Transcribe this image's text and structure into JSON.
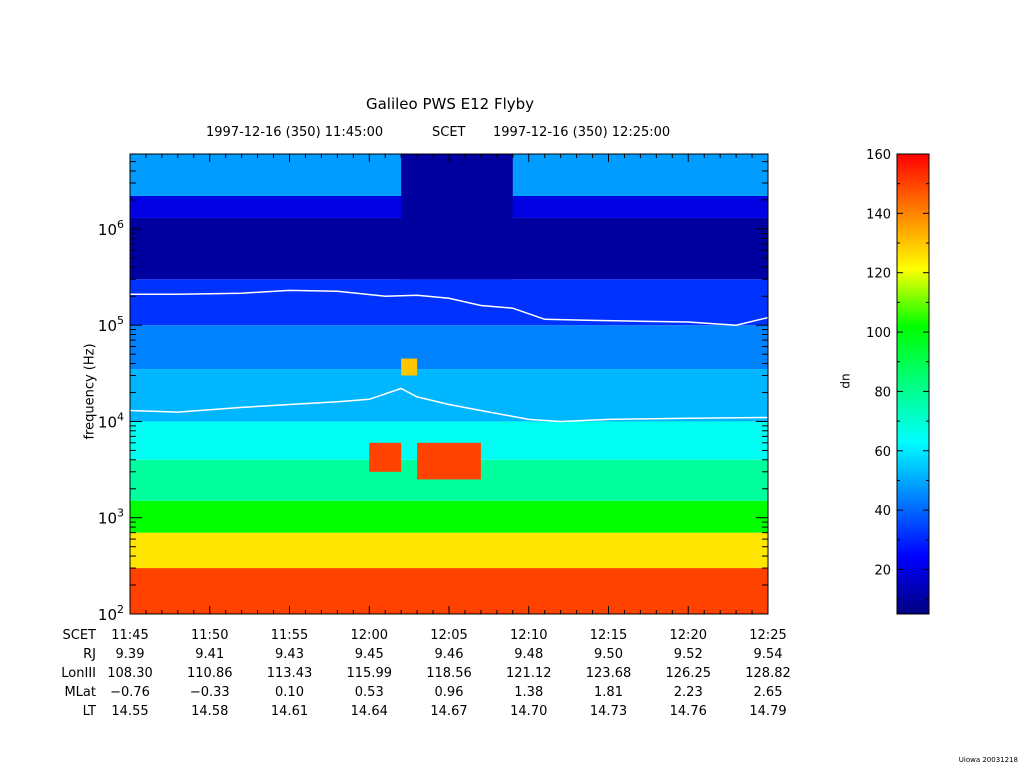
{
  "page": {
    "title": "Galileo PWS E12 Flyby",
    "start_time": "1997-12-16 (350) 11:45:00",
    "time_system": "SCET",
    "end_time": "1997-12-16 (350) 12:25:00",
    "footer": "Uiowa 20031218"
  },
  "ephemeris": {
    "rows": [
      {
        "label": "SCET",
        "values": [
          "11:45",
          "11:50",
          "11:55",
          "12:00",
          "12:05",
          "12:10",
          "12:15",
          "12:20",
          "12:25"
        ]
      },
      {
        "label": "RJ",
        "values": [
          "9.39",
          "9.41",
          "9.43",
          "9.45",
          "9.46",
          "9.48",
          "9.50",
          "9.52",
          "9.54"
        ]
      },
      {
        "label": "LonIII",
        "values": [
          "108.30",
          "110.86",
          "113.43",
          "115.99",
          "118.56",
          "121.12",
          "123.68",
          "126.25",
          "128.82"
        ]
      },
      {
        "label": "MLat",
        "values": [
          "−0.76",
          "−0.33",
          "0.10",
          "0.53",
          "0.96",
          "1.38",
          "1.81",
          "2.23",
          "2.65"
        ]
      },
      {
        "label": "LT",
        "values": [
          "14.55",
          "14.58",
          "14.61",
          "14.64",
          "14.67",
          "14.70",
          "14.73",
          "14.76",
          "14.79"
        ]
      }
    ]
  },
  "chart_data": {
    "type": "heatmap",
    "title": "Galileo PWS E12 Flyby",
    "ylabel": "frequency (Hz)",
    "yscale": "log",
    "ylim": [
      100,
      6000000
    ],
    "y_ticks": [
      {
        "mantissa": "10",
        "exp": "2"
      },
      {
        "mantissa": "10",
        "exp": "3"
      },
      {
        "mantissa": "10",
        "exp": "4"
      },
      {
        "mantissa": "10",
        "exp": "5"
      },
      {
        "mantissa": "10",
        "exp": "6"
      }
    ],
    "x_ticks": [
      "11:45",
      "11:50",
      "11:55",
      "12:00",
      "12:05",
      "12:10",
      "12:15",
      "12:20",
      "12:25"
    ],
    "xlim": [
      "11:45",
      "12:25"
    ],
    "colorbar": {
      "label": "dn",
      "range": [
        5,
        160
      ],
      "ticks": [
        "20",
        "40",
        "60",
        "80",
        "100",
        "120",
        "140",
        "160"
      ],
      "colors": [
        "#000080",
        "#0000ff",
        "#0080ff",
        "#00ffff",
        "#00ff80",
        "#00ff00",
        "#ffff00",
        "#ff8000",
        "#ff0000"
      ]
    },
    "bands": [
      {
        "f_low": 100,
        "f_high": 300,
        "dn": 150
      },
      {
        "f_low": 300,
        "f_high": 700,
        "dn": 125
      },
      {
        "f_low": 700,
        "f_high": 1500,
        "dn": 102
      },
      {
        "f_low": 1500,
        "f_high": 4000,
        "dn": 78
      },
      {
        "f_low": 4000,
        "f_high": 10000,
        "dn": 65
      },
      {
        "f_low": 10000,
        "f_high": 35000,
        "dn": 52
      },
      {
        "f_low": 35000,
        "f_high": 100000,
        "dn": 44
      },
      {
        "f_low": 100000,
        "f_high": 300000,
        "dn": 32
      },
      {
        "f_low": 300000,
        "f_high": 1300000,
        "dn": 10
      },
      {
        "f_low": 1300000,
        "f_high": 2200000,
        "dn": 20
      },
      {
        "f_low": 2200000,
        "f_high": 6000000,
        "dn": 48
      }
    ],
    "gap": {
      "t_start": "12:02",
      "t_end": "12:09",
      "f_low": 300000,
      "f_high": 6000000,
      "dn": 10
    },
    "bursts": [
      {
        "t_start": "12:00",
        "t_end": "12:02",
        "f_low": 3000,
        "f_high": 6000,
        "dn": 150
      },
      {
        "t_start": "12:03",
        "t_end": "12:07",
        "f_low": 2500,
        "f_high": 6000,
        "dn": 150
      },
      {
        "t_start": "12:02",
        "t_end": "12:03",
        "f_low": 30000,
        "f_high": 45000,
        "dn": 130
      }
    ],
    "series": [
      {
        "color": "#ffffff",
        "points": [
          [
            "11:45",
            210000
          ],
          [
            "11:48",
            210000
          ],
          [
            "11:52",
            215000
          ],
          [
            "11:55",
            230000
          ],
          [
            "11:58",
            225000
          ],
          [
            "12:01",
            200000
          ],
          [
            "12:03",
            205000
          ],
          [
            "12:05",
            190000
          ],
          [
            "12:07",
            160000
          ],
          [
            "12:09",
            150000
          ],
          [
            "12:11",
            115000
          ],
          [
            "12:14",
            112000
          ],
          [
            "12:17",
            110000
          ],
          [
            "12:20",
            108000
          ],
          [
            "12:23",
            100000
          ],
          [
            "12:25",
            120000
          ]
        ]
      },
      {
        "color": "#ffffff",
        "points": [
          [
            "11:45",
            13000
          ],
          [
            "11:48",
            12500
          ],
          [
            "11:52",
            14000
          ],
          [
            "11:55",
            15000
          ],
          [
            "11:58",
            16000
          ],
          [
            "12:00",
            17000
          ],
          [
            "12:02",
            22000
          ],
          [
            "12:03",
            18000
          ],
          [
            "12:05",
            15000
          ],
          [
            "12:07",
            13000
          ],
          [
            "12:10",
            10500
          ],
          [
            "12:12",
            10000
          ],
          [
            "12:15",
            10500
          ],
          [
            "12:20",
            10800
          ],
          [
            "12:25",
            11000
          ]
        ]
      }
    ]
  }
}
